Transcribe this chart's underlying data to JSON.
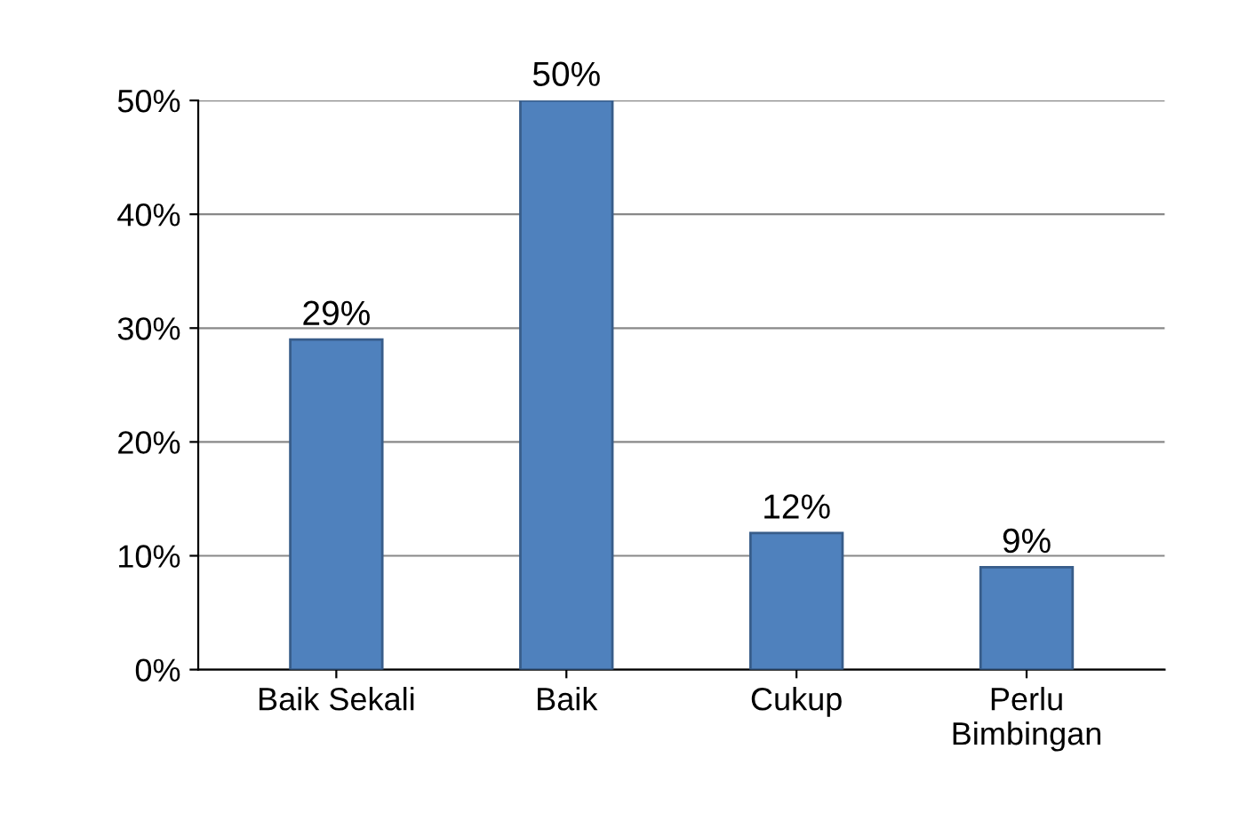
{
  "chart_data": {
    "type": "bar",
    "categories": [
      "Baik Sekali",
      "Baik",
      "Cukup",
      "Perlu\nBimbingan"
    ],
    "values": [
      29,
      50,
      12,
      9
    ],
    "color": "#4f81bd",
    "value_labels": [
      "29%",
      "50%",
      "12%",
      "9%"
    ],
    "ylim": [
      0,
      50
    ],
    "yticks": [
      {
        "value": 0,
        "label": "0%"
      },
      {
        "value": 10,
        "label": "10%"
      },
      {
        "value": 20,
        "label": "20%"
      },
      {
        "value": 30,
        "label": "30%"
      },
      {
        "value": 40,
        "label": "40%"
      },
      {
        "value": 50,
        "label": "50%"
      }
    ],
    "grid": "y",
    "legend": false
  }
}
